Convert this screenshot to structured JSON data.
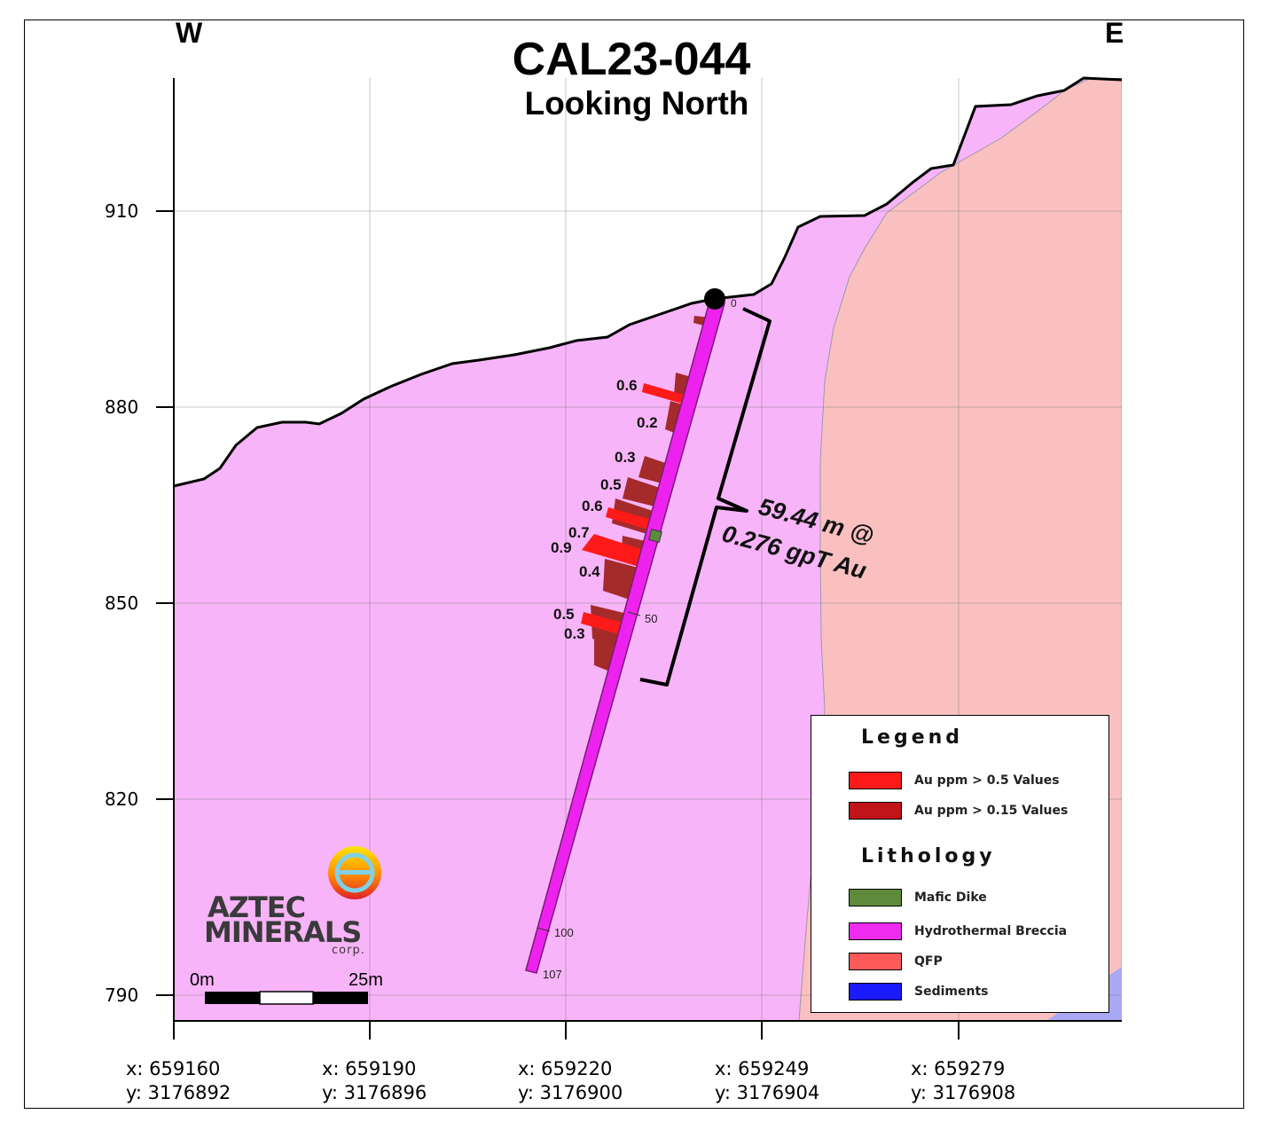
{
  "title": "CAL23-044",
  "subtitle": "Looking North",
  "compass": {
    "west": "W",
    "east": "E"
  },
  "elevation_labels": [
    "910",
    "880",
    "850",
    "820",
    "790"
  ],
  "easting_labels": [
    {
      "x": "x: 659160",
      "y": "y: 3176892"
    },
    {
      "x": "x: 659190",
      "y": "y: 3176896"
    },
    {
      "x": "x: 659220",
      "y": "y: 3176900"
    },
    {
      "x": "x: 659249",
      "y": "y: 3176904"
    },
    {
      "x": "x: 659279",
      "y": "y: 3176908"
    }
  ],
  "depth_ticks": [
    "0",
    "50",
    "100",
    "107"
  ],
  "assay_values": [
    "0.6",
    "0.2",
    "0.3",
    "0.5",
    "0.6",
    "0.7",
    "0.9",
    "0.4",
    "0.5",
    "0.3"
  ],
  "intercept": {
    "line1": "59.44 m @",
    "line2": "0.276 gpT Au"
  },
  "scale_bar": {
    "start": "0m",
    "end": "25m"
  },
  "logo": {
    "name": "AZTEC",
    "name2": "MINERALS",
    "suffix": "corp."
  },
  "legend": {
    "title": "Legend",
    "items": [
      {
        "label": "Au ppm > 0.5 Values",
        "color": "#ff1a1a"
      },
      {
        "label": "Au ppm > 0.15 Values",
        "color": "#c0141a"
      }
    ],
    "lithology_title": "Lithology",
    "lithology": [
      {
        "label": "Mafic Dike",
        "color": "#5f8a3c"
      },
      {
        "label": "Hydrothermal Breccia",
        "color": "#ef2bf0"
      },
      {
        "label": "QFP",
        "color": "#ff5a5a"
      },
      {
        "label": "Sediments",
        "color": "#1a1aff"
      }
    ]
  },
  "colors": {
    "breccia_fill": "#f8b4f8",
    "qfp_fill": "#fac0c0",
    "sediment_fill": "#a8a8f4",
    "drillhole": "#ee22ee",
    "high_grade": "#ff1a1a",
    "mid_grade": "#a52a2a"
  }
}
